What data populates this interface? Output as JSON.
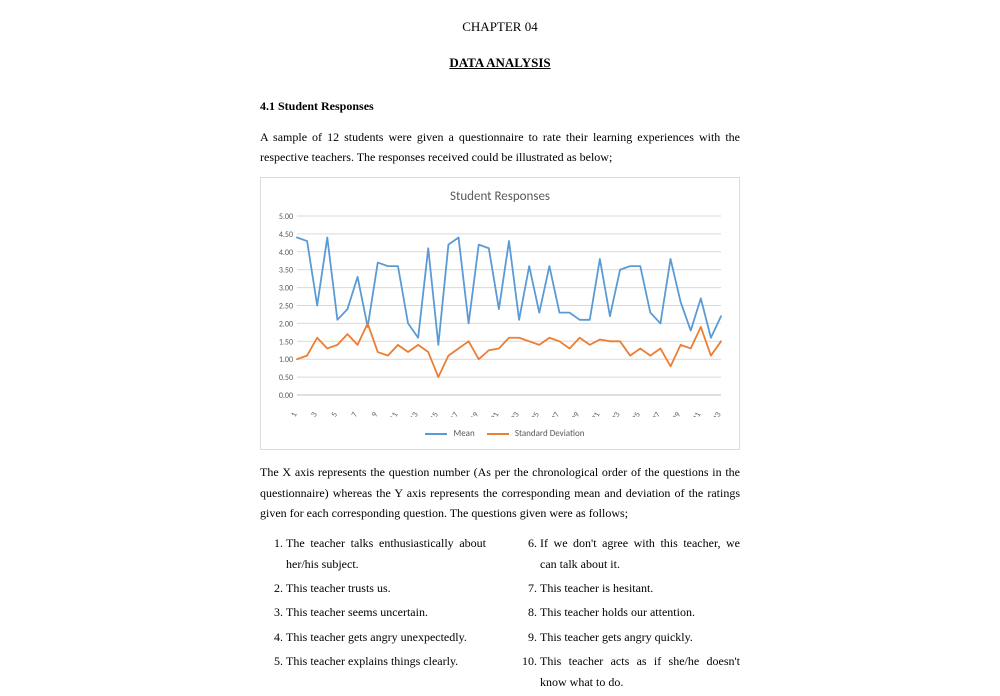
{
  "chapter": "CHAPTER 04",
  "title": "DATA ANALYSIS",
  "section_heading": "4.1 Student Responses",
  "intro": "A sample of 12 students were given a questionnaire to rate their learning experiences with the respective teachers. The responses received could be illustrated as below;",
  "after_chart": "The X axis represents the question number (As per the chronological order of the questions in the questionnaire) whereas the Y axis represents the corresponding mean and deviation of the ratings given for each corresponding question. The questions given were as follows;",
  "questions_left": [
    "The teacher talks enthusiastically about her/his subject.",
    "This teacher trusts us.",
    "This teacher seems uncertain.",
    "This teacher gets angry unexpectedly.",
    "This teacher explains things clearly."
  ],
  "questions_right": [
    "If we don't agree with this teacher, we can talk about it.",
    "This teacher is hesitant.",
    "This teacher holds our attention.",
    "This teacher gets angry quickly.",
    "This teacher acts as if she/he doesn't know what to do."
  ],
  "chart": {
    "type": "line",
    "title": "Student Responses",
    "title_fontsize": 13,
    "title_color": "#595959",
    "background_color": "#ffffff",
    "border_color": "#dcdcdc",
    "grid_color": "#d9d9d9",
    "axis_color": "#bfbfbf",
    "label_fontsize": 8,
    "label_color": "#595959",
    "ylim": [
      0.0,
      5.0
    ],
    "ytick_step": 0.5,
    "ytick_labels": [
      "0.00",
      "0.50",
      "1.00",
      "1.50",
      "2.00",
      "2.50",
      "3.00",
      "3.50",
      "4.00",
      "4.50",
      "5.00"
    ],
    "xticks": [
      1,
      3,
      5,
      7,
      9,
      11,
      13,
      15,
      17,
      19,
      21,
      23,
      25,
      27,
      29,
      31,
      33,
      35,
      37,
      39,
      41,
      43
    ],
    "line_width": 1.8,
    "series": [
      {
        "name": "Mean",
        "color": "#5b9bd5",
        "values": [
          4.4,
          4.3,
          2.5,
          4.4,
          2.1,
          2.4,
          3.3,
          1.9,
          3.7,
          3.6,
          3.6,
          2.0,
          1.6,
          4.1,
          1.4,
          4.2,
          4.4,
          2.0,
          4.2,
          4.1,
          2.4,
          4.3,
          2.1,
          3.6,
          2.3,
          3.6,
          2.3,
          2.3,
          2.1,
          2.1,
          3.8,
          2.2,
          3.5,
          3.6,
          3.6,
          2.3,
          2.0,
          3.8,
          2.6,
          1.8,
          2.7,
          1.6,
          2.2
        ]
      },
      {
        "name": "Standard Deviation",
        "color": "#ed7d31",
        "values": [
          1.0,
          1.1,
          1.6,
          1.3,
          1.4,
          1.7,
          1.4,
          2.0,
          1.2,
          1.1,
          1.4,
          1.2,
          1.4,
          1.2,
          0.5,
          1.1,
          1.3,
          1.5,
          1.0,
          1.25,
          1.3,
          1.6,
          1.6,
          1.5,
          1.4,
          1.6,
          1.5,
          1.3,
          1.6,
          1.4,
          1.55,
          1.5,
          1.5,
          1.1,
          1.3,
          1.1,
          1.3,
          0.8,
          1.4,
          1.3,
          1.9,
          1.1,
          1.5
        ]
      }
    ],
    "legend": {
      "items": [
        {
          "label": "Mean",
          "color": "#5b9bd5"
        },
        {
          "label": "Standard Deviation",
          "color": "#ed7d31"
        }
      ]
    }
  }
}
